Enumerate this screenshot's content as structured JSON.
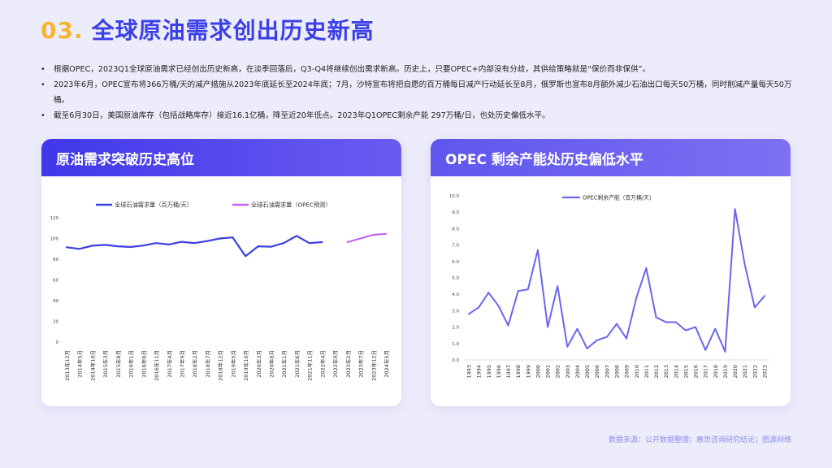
{
  "page": {
    "title_num": "03.",
    "title_text": "全球原油需求创出历史新高",
    "footer": "数据来源：公开数据整理；惠世咨询研究结论；图源网络"
  },
  "bullets": [
    "根据OPEC，2023Q1全球原油需求已经创出历史新高，在淡季回落后，Q3-Q4将继续创出需求新高。历史上，只要OPEC+内部没有分歧，其供给策略就是“保价而非保供”。",
    "2023年6月，OPEC宣布将366万桶/天的减产措施从2023年底延长至2024年底；7月，沙特宣布将把自愿的百万桶每日减产行动延长至8月，俄罗斯也宣布8月额外减少石油出口每天50万桶，同时削减产量每天50万桶。",
    "截至6月30日，美国原油库存（包括战略库存）接近16.1亿桶，降至近20年低点。2023年Q1OPEC剩余产能 297万桶/日，也处历史偏低水平。"
  ],
  "cards": {
    "left_title": "原油需求突破历史高位",
    "right_title": "OPEC 剩余产能处历史偏低水平"
  },
  "chart_data": [
    {
      "type": "line",
      "categories": [
        "2013年12月",
        "2014年5月",
        "2014年10月",
        "2015年3月",
        "2015年8月",
        "2016年1月",
        "2016年6月",
        "2016年11月",
        "2017年4月",
        "2017年9月",
        "2018年2月",
        "2018年7月",
        "2018年12月",
        "2019年5月",
        "2019年10月",
        "2020年3月",
        "2020年8月",
        "2021年1月",
        "2021年6月",
        "2021年11月",
        "2022年4月",
        "2022年9月",
        "2023年2月",
        "2023年7月",
        "2023年12月",
        "2024年5月"
      ],
      "series": [
        {
          "name": "全球石油需求量（百万桶/天）",
          "color": "#3a3fe0",
          "values": [
            91.5,
            90,
            93,
            93.8,
            92.5,
            91.8,
            93.2,
            95.5,
            94.2,
            96.8,
            95.5,
            97.5,
            100,
            101,
            83,
            92.5,
            92,
            95.5,
            102.5,
            95.5,
            96.5,
            null,
            null,
            null,
            null,
            null
          ]
        },
        {
          "name": "全球石油需求量（OPEC预测）",
          "color": "#c264ee",
          "values": [
            null,
            null,
            null,
            null,
            null,
            null,
            null,
            null,
            null,
            null,
            null,
            null,
            null,
            null,
            null,
            null,
            null,
            null,
            null,
            null,
            96.5,
            103.5,
            104.5,
            null,
            null,
            null
          ]
        }
      ],
      "yticks": [
        "0",
        "20",
        "40",
        "60",
        "80",
        "100",
        "120"
      ],
      "ylim": [
        0,
        120
      ]
    },
    {
      "type": "line",
      "categories": [
        "1993",
        "1994",
        "1995",
        "1996",
        "1997",
        "1998",
        "1999",
        "2000",
        "2001",
        "2002",
        "2003",
        "2004",
        "2005",
        "2006",
        "2007",
        "2008",
        "2009",
        "2010",
        "2011",
        "2012",
        "2013",
        "2014",
        "2015",
        "2016",
        "2017",
        "2018",
        "2019",
        "2020",
        "2021",
        "2022",
        "2023"
      ],
      "series": [
        {
          "name": "OPEC剩余产能（百万桶/天）",
          "color": "#6a66ee",
          "values": [
            2.8,
            3.2,
            4.1,
            3.3,
            2.1,
            4.2,
            4.3,
            6.7,
            2.0,
            4.5,
            0.8,
            1.9,
            0.7,
            1.2,
            1.4,
            2.2,
            1.3,
            3.8,
            5.6,
            2.6,
            2.3,
            2.3,
            1.8,
            2.0,
            0.6,
            1.9,
            0.5,
            9.2,
            5.8,
            3.2,
            3.9
          ]
        }
      ],
      "yticks": [
        "0.0",
        "1.0",
        "2.0",
        "3.0",
        "4.0",
        "5.0",
        "6.0",
        "7.0",
        "8.0",
        "9.0",
        "10.0"
      ],
      "ylim": [
        0,
        10
      ]
    }
  ]
}
